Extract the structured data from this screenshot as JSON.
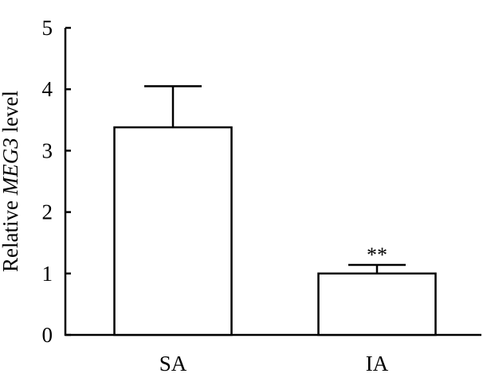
{
  "chart_data": {
    "type": "bar",
    "categories": [
      "SA",
      "IA"
    ],
    "values": [
      3.38,
      1.0
    ],
    "errors": [
      0.67,
      0.14
    ],
    "significance": [
      "",
      "**"
    ],
    "ylabel": {
      "prefix": "Relative ",
      "gene": "MEG3",
      "suffix": " level"
    },
    "ylim": [
      0,
      5
    ],
    "yticks": [
      "0",
      "1",
      "2",
      "3",
      "4",
      "5"
    ],
    "grid": false,
    "legend": false
  }
}
